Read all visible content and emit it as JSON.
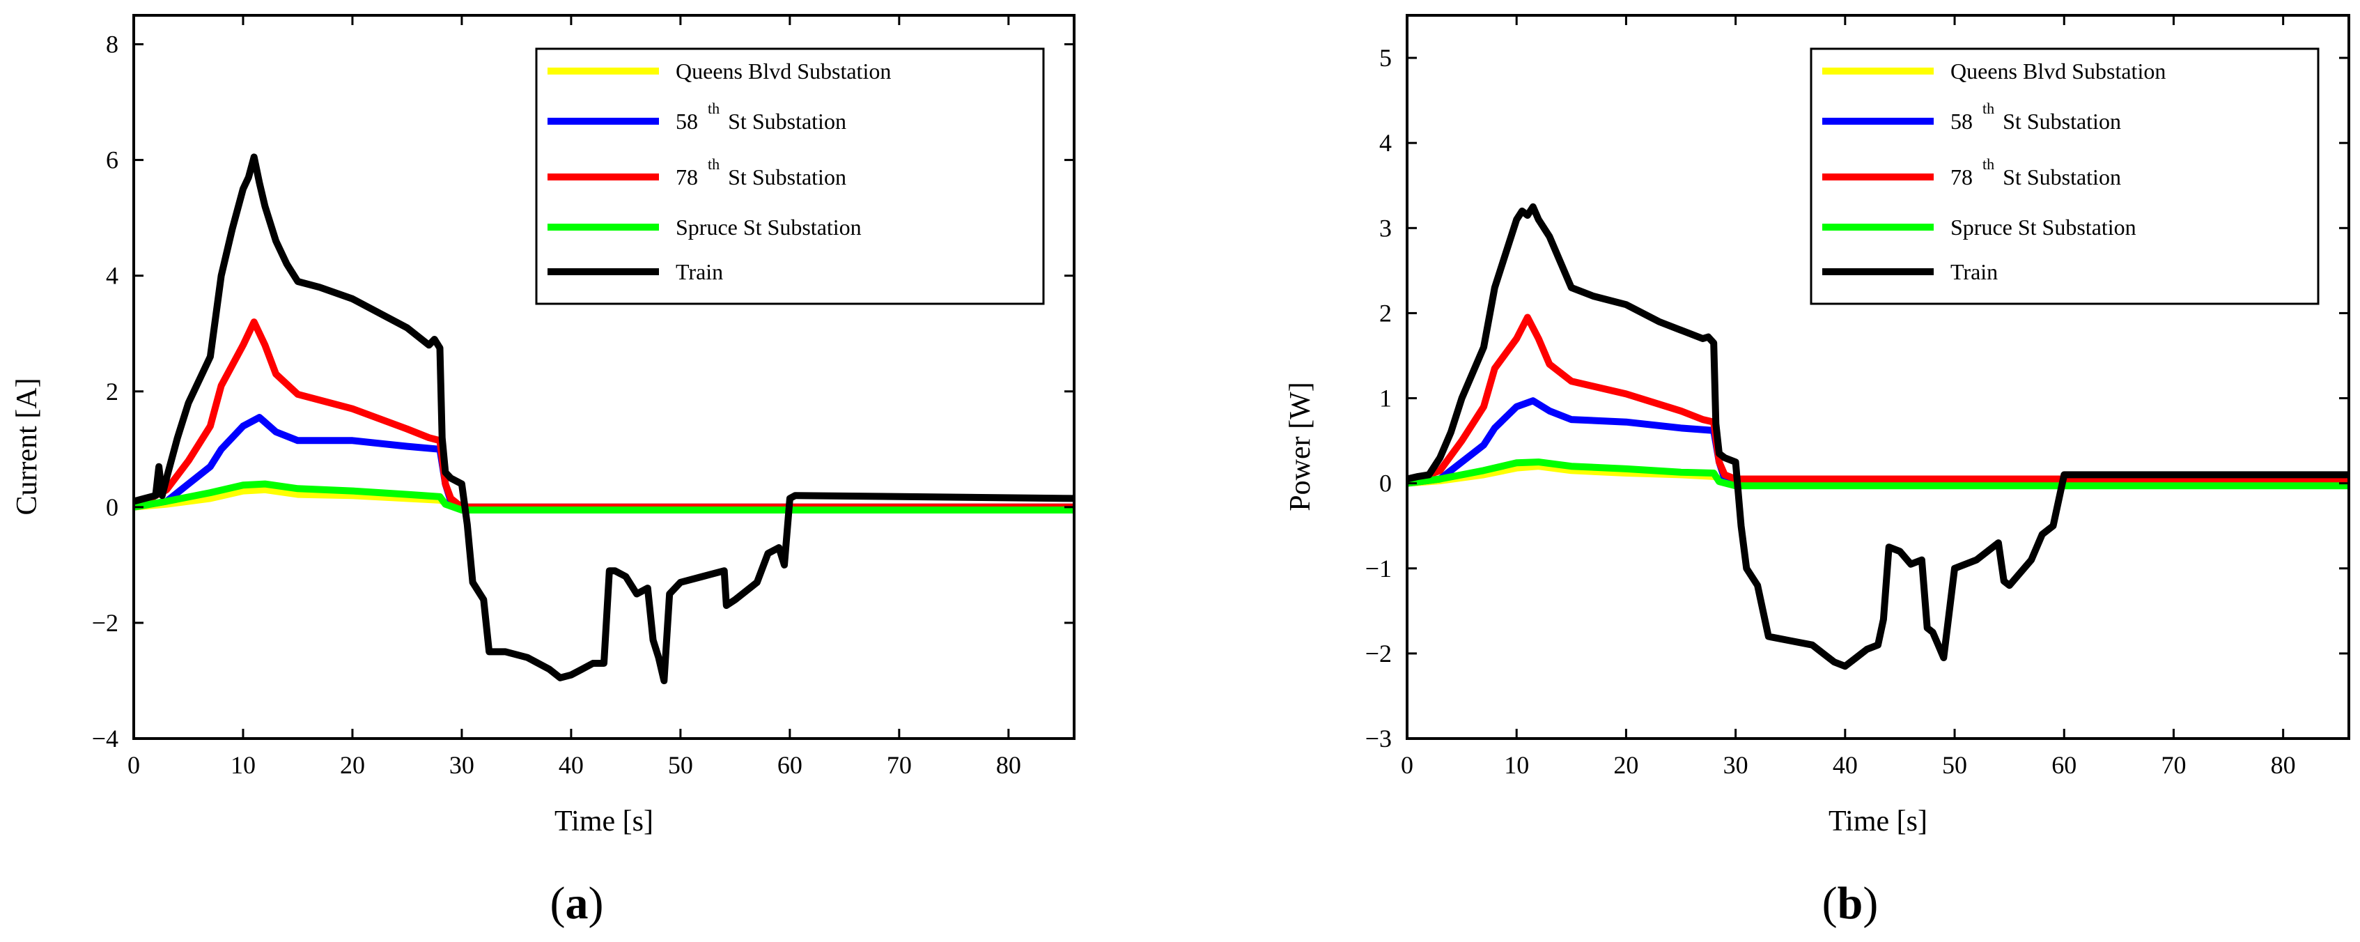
{
  "chart_data": [
    {
      "type": "line",
      "panel_label": "a",
      "xlabel": "Time [s]",
      "ylabel": "Current [A]",
      "xlim": [
        0,
        86
      ],
      "ylim": [
        -4,
        8.5
      ],
      "xticks": [
        0,
        10,
        20,
        30,
        40,
        50,
        60,
        70,
        80
      ],
      "yticks": [
        -4,
        -2,
        0,
        2,
        4,
        6,
        8
      ],
      "legend_position": "top-right",
      "series": [
        {
          "key": "queens",
          "name_prefix": "Queens Blvd Substation",
          "name_sup": "",
          "name_suffix": "",
          "color": "#ffff00",
          "x": [
            0,
            3,
            7,
            10,
            12,
            15,
            20,
            25,
            28,
            29,
            30,
            86
          ],
          "y": [
            0,
            0.05,
            0.15,
            0.28,
            0.3,
            0.22,
            0.2,
            0.15,
            0.12,
            0.05,
            0,
            0
          ]
        },
        {
          "key": "s58",
          "name_prefix": "58",
          "name_sup": "th",
          "name_suffix": " St Substation",
          "color": "#0000ff",
          "x": [
            0,
            3,
            5,
            7,
            8,
            10,
            11.5,
            13,
            15,
            20,
            25,
            28,
            28.5,
            29,
            30,
            86
          ],
          "y": [
            0,
            0.1,
            0.4,
            0.7,
            1.0,
            1.4,
            1.55,
            1.3,
            1.15,
            1.15,
            1.05,
            1.0,
            0.4,
            0.1,
            0,
            0
          ]
        },
        {
          "key": "s78",
          "name_prefix": "78",
          "name_sup": "th",
          "name_suffix": " St Substation",
          "color": "#ff0000",
          "x": [
            0,
            3,
            5,
            7,
            8,
            10,
            11,
            12,
            13,
            15,
            20,
            25,
            27,
            28,
            28.5,
            29,
            30,
            86
          ],
          "y": [
            0,
            0.3,
            0.8,
            1.4,
            2.1,
            2.8,
            3.2,
            2.8,
            2.3,
            1.95,
            1.7,
            1.35,
            1.2,
            1.15,
            0.4,
            0.15,
            0,
            0
          ]
        },
        {
          "key": "spruce",
          "name_prefix": "Spruce St Substation",
          "name_sup": "",
          "name_suffix": "",
          "color": "#00ff00",
          "x": [
            0,
            3,
            7,
            10,
            12,
            15,
            20,
            25,
            28,
            28.5,
            30,
            86
          ],
          "y": [
            0,
            0.1,
            0.25,
            0.38,
            0.4,
            0.32,
            0.28,
            0.22,
            0.18,
            0.05,
            -0.05,
            -0.05
          ]
        },
        {
          "key": "train",
          "name_prefix": "Train",
          "name_sup": "",
          "name_suffix": "",
          "color": "#000000",
          "x": [
            0,
            1,
            2,
            2.3,
            2.6,
            3,
            4,
            5,
            7,
            8,
            9,
            10,
            10.5,
            11,
            11.5,
            12,
            13,
            14,
            15,
            17,
            20,
            23,
            25,
            27,
            27.5,
            28,
            28.2,
            28.5,
            29,
            30,
            30.5,
            31,
            32,
            32.5,
            34,
            36,
            38,
            39,
            40,
            41,
            42,
            43,
            43.5,
            44,
            45,
            46,
            47,
            47.5,
            48,
            48.5,
            49,
            50,
            52,
            54,
            54.2,
            55,
            57,
            58,
            59,
            59.5,
            60,
            60.5,
            86
          ],
          "y": [
            0.1,
            0.15,
            0.2,
            0.7,
            0.2,
            0.5,
            1.2,
            1.8,
            2.6,
            4.0,
            4.8,
            5.5,
            5.7,
            6.05,
            5.6,
            5.2,
            4.6,
            4.2,
            3.9,
            3.8,
            3.6,
            3.3,
            3.1,
            2.8,
            2.9,
            2.75,
            1.2,
            0.6,
            0.5,
            0.4,
            -0.3,
            -1.3,
            -1.6,
            -2.5,
            -2.5,
            -2.6,
            -2.8,
            -2.95,
            -2.9,
            -2.8,
            -2.7,
            -2.7,
            -1.1,
            -1.1,
            -1.2,
            -1.5,
            -1.4,
            -2.3,
            -2.6,
            -3.0,
            -1.5,
            -1.3,
            -1.2,
            -1.1,
            -1.7,
            -1.6,
            -1.3,
            -0.8,
            -0.7,
            -1.0,
            0.15,
            0.2,
            0.15
          ]
        }
      ]
    },
    {
      "type": "line",
      "panel_label": "b",
      "xlabel": "Time [s]",
      "ylabel": "Power [W]",
      "xlim": [
        0,
        86
      ],
      "ylim": [
        -3,
        5.5
      ],
      "xticks": [
        0,
        10,
        20,
        30,
        40,
        50,
        60,
        70,
        80
      ],
      "yticks": [
        -3,
        -2,
        -1,
        0,
        1,
        2,
        3,
        4,
        5
      ],
      "legend_position": "top-right",
      "series": [
        {
          "key": "queens",
          "name_prefix": "Queens Blvd Substation",
          "name_sup": "",
          "name_suffix": "",
          "color": "#ffff00",
          "x": [
            0,
            3,
            7,
            10,
            12,
            15,
            20,
            25,
            28,
            29,
            30,
            86
          ],
          "y": [
            0,
            0.03,
            0.1,
            0.18,
            0.2,
            0.15,
            0.12,
            0.1,
            0.08,
            0.03,
            0,
            0
          ]
        },
        {
          "key": "s58",
          "name_prefix": "58",
          "name_sup": "th",
          "name_suffix": " St Substation",
          "color": "#0000ff",
          "x": [
            0,
            3,
            5,
            7,
            8,
            10,
            11.5,
            13,
            15,
            20,
            25,
            28,
            28.5,
            29,
            30,
            86
          ],
          "y": [
            0,
            0.05,
            0.25,
            0.45,
            0.65,
            0.9,
            0.97,
            0.85,
            0.75,
            0.72,
            0.65,
            0.62,
            0.25,
            0.05,
            0,
            0
          ]
        },
        {
          "key": "s78",
          "name_prefix": "78",
          "name_sup": "th",
          "name_suffix": " St Substation",
          "color": "#ff0000",
          "x": [
            0,
            3,
            5,
            7,
            8,
            10,
            11,
            12,
            13,
            15,
            20,
            25,
            27,
            28,
            28.5,
            29,
            30,
            86
          ],
          "y": [
            0,
            0.15,
            0.5,
            0.9,
            1.35,
            1.7,
            1.95,
            1.7,
            1.4,
            1.2,
            1.05,
            0.85,
            0.75,
            0.72,
            0.25,
            0.1,
            0.05,
            0.05
          ]
        },
        {
          "key": "spruce",
          "name_prefix": "Spruce St Substation",
          "name_sup": "",
          "name_suffix": "",
          "color": "#00ff00",
          "x": [
            0,
            3,
            7,
            10,
            12,
            15,
            20,
            25,
            28,
            28.5,
            30,
            86
          ],
          "y": [
            0,
            0.05,
            0.15,
            0.24,
            0.25,
            0.2,
            0.17,
            0.13,
            0.12,
            0.02,
            -0.03,
            -0.03
          ]
        },
        {
          "key": "train",
          "name_prefix": "Train",
          "name_sup": "",
          "name_suffix": "",
          "color": "#000000",
          "x": [
            0,
            1,
            2,
            3,
            4,
            5,
            7,
            8,
            9,
            10,
            10.5,
            11,
            11.5,
            12,
            13,
            14,
            15,
            17,
            20,
            23,
            25,
            27,
            27.5,
            28,
            28.2,
            28.5,
            29,
            30,
            30.5,
            31,
            32,
            33,
            35,
            37,
            38,
            39,
            40,
            41,
            42,
            43,
            43.5,
            44,
            45,
            46,
            47,
            47.5,
            48,
            48.5,
            49,
            50,
            52,
            54,
            54.5,
            55,
            57,
            58,
            59,
            60,
            86
          ],
          "y": [
            0.05,
            0.08,
            0.1,
            0.3,
            0.6,
            1.0,
            1.6,
            2.3,
            2.7,
            3.1,
            3.2,
            3.15,
            3.25,
            3.1,
            2.9,
            2.6,
            2.3,
            2.2,
            2.1,
            1.9,
            1.8,
            1.7,
            1.72,
            1.65,
            0.7,
            0.35,
            0.3,
            0.25,
            -0.5,
            -1.0,
            -1.2,
            -1.8,
            -1.85,
            -1.9,
            -2.0,
            -2.1,
            -2.15,
            -2.05,
            -1.95,
            -1.9,
            -1.6,
            -0.75,
            -0.8,
            -0.95,
            -0.9,
            -1.7,
            -1.75,
            -1.9,
            -2.05,
            -1.0,
            -0.9,
            -0.7,
            -1.15,
            -1.2,
            -0.9,
            -0.6,
            -0.5,
            0.1,
            0.1
          ]
        }
      ]
    }
  ]
}
